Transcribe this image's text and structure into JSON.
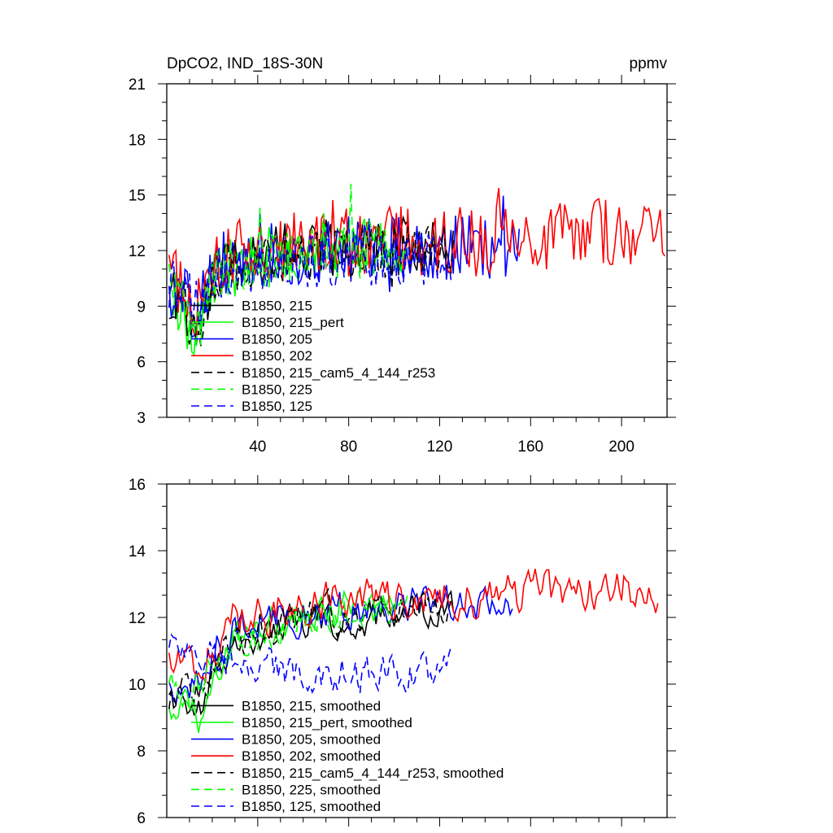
{
  "chart_data": [
    {
      "type": "line",
      "title": "DpCO2, IND_18S-30N",
      "units": "ppmv",
      "xlim": [
        0,
        220
      ],
      "ylim": [
        3,
        21
      ],
      "x_ticks": [
        40,
        80,
        120,
        160,
        200
      ],
      "x_tick_labels": [
        "40",
        "80",
        "120",
        "160",
        "200"
      ],
      "y_ticks": [
        3,
        6,
        9,
        12,
        15,
        18,
        21
      ],
      "y_tick_labels": [
        "3",
        "6",
        "9",
        "12",
        "15",
        "18",
        "21"
      ],
      "legend_position": "lower-left",
      "series": [
        {
          "name": "B1850, 215",
          "color": "#000000",
          "dash": "solid",
          "x_end": 126,
          "seed": 11,
          "start": 9.6,
          "plateau": 12.3,
          "noise": 1.6,
          "dip": 3.0
        },
        {
          "name": "B1850, 215_pert",
          "color": "#00ff00",
          "dash": "solid",
          "x_end": 100,
          "seed": 23,
          "start": 9.3,
          "plateau": 12.4,
          "noise": 1.6,
          "dip": 3.2
        },
        {
          "name": "B1850, 205",
          "color": "#0000ff",
          "dash": "solid",
          "x_end": 155,
          "seed": 37,
          "start": 10.0,
          "plateau": 12.2,
          "noise": 1.8,
          "dip": 2.2
        },
        {
          "name": "B1850, 202",
          "color": "#ff0000",
          "dash": "solid",
          "x_end": 219,
          "seed": 41,
          "start": 10.4,
          "plateau": 12.6,
          "noise": 1.9,
          "dip": 2.6
        },
        {
          "name": "B1850, 215_cam5_4_144_r253",
          "color": "#000000",
          "dash": "dashed",
          "x_end": 126,
          "seed": 53,
          "start": 9.6,
          "plateau": 12.1,
          "noise": 1.5,
          "dip": 2.8
        },
        {
          "name": "B1850, 225",
          "color": "#00ff00",
          "dash": "dashed",
          "x_end": 106,
          "seed": 67,
          "start": 9.8,
          "plateau": 12.0,
          "noise": 1.5,
          "dip": 2.6
        },
        {
          "name": "B1850, 125",
          "color": "#0000ff",
          "dash": "dashed",
          "x_end": 125,
          "seed": 79,
          "start": 10.2,
          "plateau": 11.5,
          "noise": 1.4,
          "dip": 1.5
        }
      ]
    },
    {
      "type": "line",
      "title": "",
      "xlim": [
        0,
        220
      ],
      "ylim": [
        6,
        16
      ],
      "x_ticks": [
        40,
        80,
        120,
        160,
        200
      ],
      "x_tick_labels": [],
      "y_ticks": [
        6,
        8,
        10,
        12,
        14,
        16
      ],
      "y_tick_labels": [
        "6",
        "8",
        "10",
        "12",
        "14",
        "16"
      ],
      "legend_position": "lower-left",
      "series": [
        {
          "name": "B1850, 215, smoothed",
          "color": "#000000",
          "dash": "solid",
          "x_end": 126,
          "seed": 111,
          "start": 9.2,
          "plateau": 12.2,
          "noise": 0.45,
          "dip": 1.1
        },
        {
          "name": "B1850, 215_pert, smoothed",
          "color": "#00ff00",
          "dash": "solid",
          "x_end": 100,
          "seed": 123,
          "start": 9.0,
          "plateau": 12.5,
          "noise": 0.45,
          "dip": 1.4
        },
        {
          "name": "B1850, 205, smoothed",
          "color": "#0000ff",
          "dash": "solid",
          "x_end": 152,
          "seed": 137,
          "start": 9.8,
          "plateau": 12.5,
          "noise": 0.5,
          "dip": 0.8
        },
        {
          "name": "B1850, 202, smoothed",
          "color": "#ff0000",
          "dash": "solid",
          "x_end": 216,
          "seed": 141,
          "start": 10.6,
          "plateau": 12.6,
          "noise": 0.55,
          "dip": 0.8
        },
        {
          "name": "B1850, 215_cam5_4_144_r253, smoothed",
          "color": "#000000",
          "dash": "dashed",
          "x_end": 126,
          "seed": 153,
          "start": 9.6,
          "plateau": 12.3,
          "noise": 0.45,
          "dip": 0.9
        },
        {
          "name": "B1850, 225, smoothed",
          "color": "#00ff00",
          "dash": "dashed",
          "x_end": 106,
          "seed": 167,
          "start": 9.6,
          "plateau": 12.2,
          "noise": 0.45,
          "dip": 0.8
        },
        {
          "name": "B1850, 125, smoothed",
          "color": "#0000ff",
          "dash": "dashed",
          "x_end": 125,
          "seed": 179,
          "start": 11.0,
          "plateau": 10.3,
          "noise": 0.5,
          "dip": -0.5
        }
      ]
    }
  ]
}
